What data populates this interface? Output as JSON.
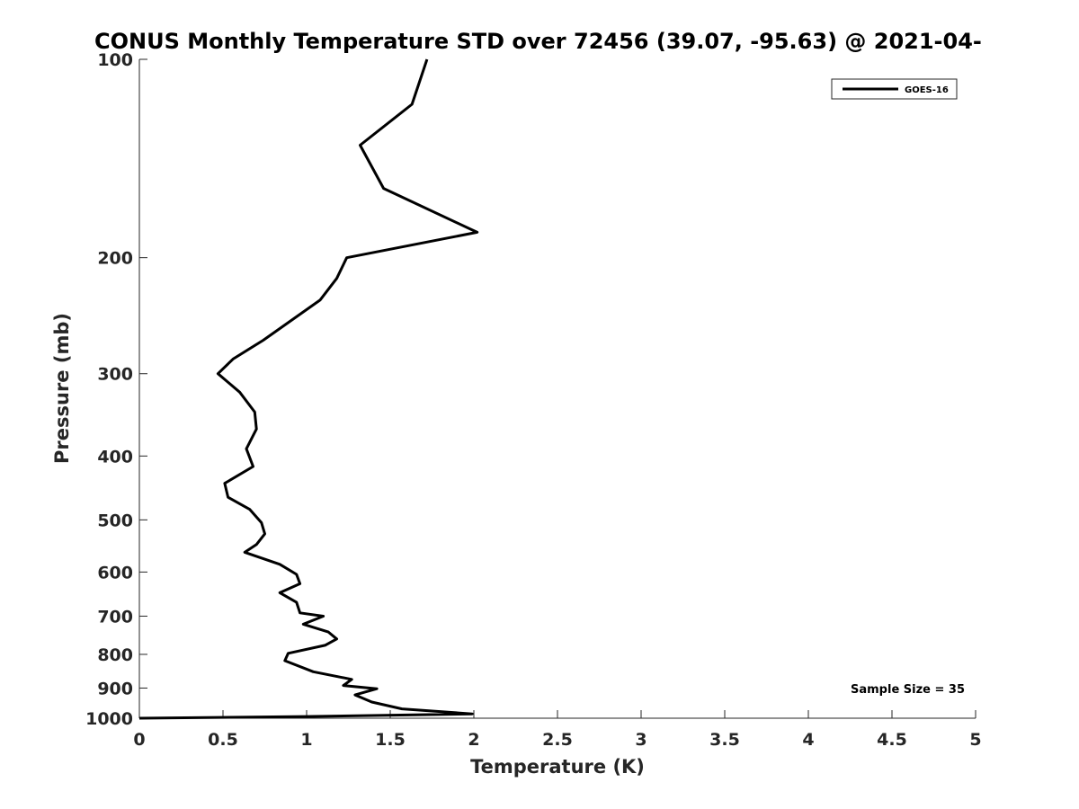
{
  "chart_data": {
    "type": "line",
    "title": "CONUS Monthly Temperature STD over 72456 (39.07, -95.63) @ 2021-04-",
    "xlabel": "Temperature (K)",
    "ylabel": "Pressure (mb)",
    "xlim": [
      0,
      5
    ],
    "ylim": [
      100,
      1000
    ],
    "yscale": "log",
    "yreversed": true,
    "x_ticks": [
      0,
      0.5,
      1,
      1.5,
      2,
      2.5,
      3,
      3.5,
      4,
      4.5,
      5
    ],
    "x_tick_labels": [
      "0",
      "0.5",
      "1",
      "1.5",
      "2",
      "2.5",
      "3",
      "3.5",
      "4",
      "4.5",
      "5"
    ],
    "y_ticks": [
      100,
      200,
      300,
      400,
      500,
      600,
      700,
      800,
      900,
      1000
    ],
    "y_tick_labels": [
      "100",
      "200",
      "300",
      "400",
      "500",
      "600",
      "700",
      "800",
      "900",
      "1000"
    ],
    "grid": false,
    "legend_position": "top-right",
    "annotation": "Sample Size = 35",
    "series": [
      {
        "name": "GOES-16",
        "color": "#000000",
        "points": [
          [
            1.72,
            100
          ],
          [
            1.63,
            117
          ],
          [
            1.32,
            135
          ],
          [
            1.46,
            157
          ],
          [
            2.02,
            183
          ],
          [
            1.24,
            200
          ],
          [
            1.18,
            215
          ],
          [
            1.08,
            232
          ],
          [
            0.74,
            267
          ],
          [
            0.56,
            285
          ],
          [
            0.47,
            300
          ],
          [
            0.6,
            320
          ],
          [
            0.69,
            343
          ],
          [
            0.7,
            364
          ],
          [
            0.64,
            390
          ],
          [
            0.68,
            415
          ],
          [
            0.51,
            440
          ],
          [
            0.53,
            462
          ],
          [
            0.66,
            482
          ],
          [
            0.73,
            505
          ],
          [
            0.75,
            525
          ],
          [
            0.7,
            545
          ],
          [
            0.63,
            560
          ],
          [
            0.84,
            584
          ],
          [
            0.94,
            605
          ],
          [
            0.96,
            625
          ],
          [
            0.84,
            645
          ],
          [
            0.94,
            667
          ],
          [
            0.96,
            692
          ],
          [
            1.1,
            700
          ],
          [
            0.98,
            720
          ],
          [
            1.13,
            740
          ],
          [
            1.18,
            758
          ],
          [
            1.11,
            775
          ],
          [
            0.89,
            797
          ],
          [
            0.87,
            818
          ],
          [
            1.04,
            850
          ],
          [
            1.27,
            873
          ],
          [
            1.22,
            892
          ],
          [
            1.42,
            902
          ],
          [
            1.29,
            922
          ],
          [
            1.39,
            945
          ],
          [
            1.57,
            968
          ],
          [
            1.99,
            985
          ],
          [
            1.0,
            994
          ],
          [
            0.0,
            1000
          ]
        ]
      }
    ]
  }
}
